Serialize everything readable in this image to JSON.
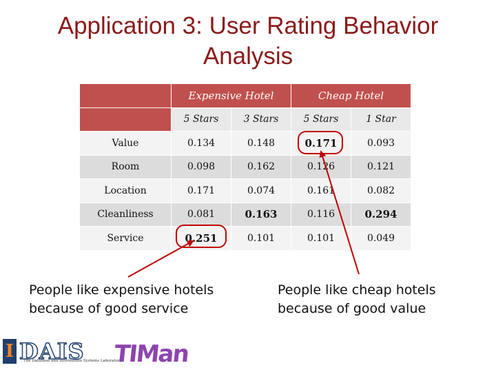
{
  "title_line1": "Application 3: User Rating Behavior",
  "title_line2": "Analysis",
  "table": {
    "groups": [
      "Expensive Hotel",
      "Cheap Hotel"
    ],
    "subheaders": [
      "5 Stars",
      "3 Stars",
      "5 Stars",
      "1 Star"
    ],
    "rows": [
      {
        "label": "Value",
        "values": [
          "0.134",
          "0.148",
          "0.171",
          "0.093"
        ]
      },
      {
        "label": "Room",
        "values": [
          "0.098",
          "0.162",
          "0.126",
          "0.121"
        ]
      },
      {
        "label": "Location",
        "values": [
          "0.171",
          "0.074",
          "0.161",
          "0.082"
        ]
      },
      {
        "label": "Cleanliness",
        "values": [
          "0.081",
          "0.163",
          "0.116",
          "0.294"
        ]
      },
      {
        "label": "Service",
        "values": [
          "0.251",
          "0.101",
          "0.101",
          "0.049"
        ]
      }
    ]
  },
  "callouts": {
    "left": [
      "People  like  expensive hotels",
      "because of  good service"
    ],
    "right": [
      "People  like cheap hotels",
      "because of good value"
    ]
  },
  "logos": {
    "dais_text": "DAIS",
    "dais_subtitle": "The Database and Information Systems Laboratory",
    "timan_text": "TIMan"
  },
  "colors": {
    "title": "#8b1a1a",
    "header": "#c0504d",
    "highlight": "#c00000"
  }
}
